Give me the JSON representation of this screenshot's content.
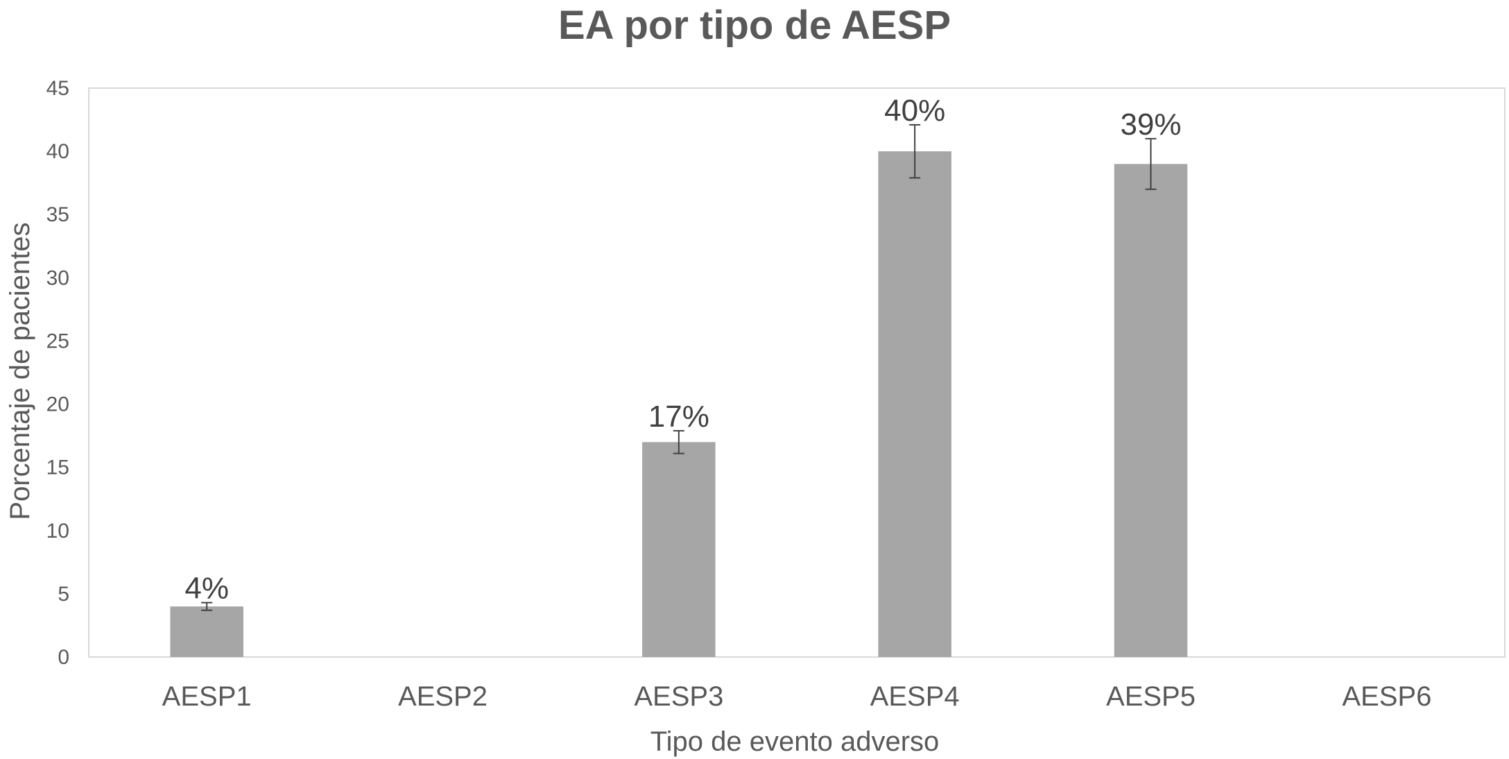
{
  "chart_data": {
    "type": "bar",
    "title": "EA por tipo de AESP",
    "xlabel": "Tipo de evento adverso",
    "ylabel": "Porcentaje de pacientes",
    "ylim": [
      0,
      45
    ],
    "yticks": [
      0,
      5,
      10,
      15,
      20,
      25,
      30,
      35,
      40,
      45
    ],
    "categories": [
      "AESP1",
      "AESP2",
      "AESP3",
      "AESP4",
      "AESP5",
      "AESP6"
    ],
    "values": [
      4,
      0,
      17,
      40,
      39,
      0
    ],
    "error": [
      0.3,
      0,
      0.9,
      2.1,
      2.0,
      0
    ],
    "data_labels": [
      "4%",
      "",
      "17%",
      "40%",
      "39%",
      ""
    ],
    "grid": false,
    "legend": "none",
    "bar_color": "#a6a6a6",
    "error_color": "#404040"
  }
}
